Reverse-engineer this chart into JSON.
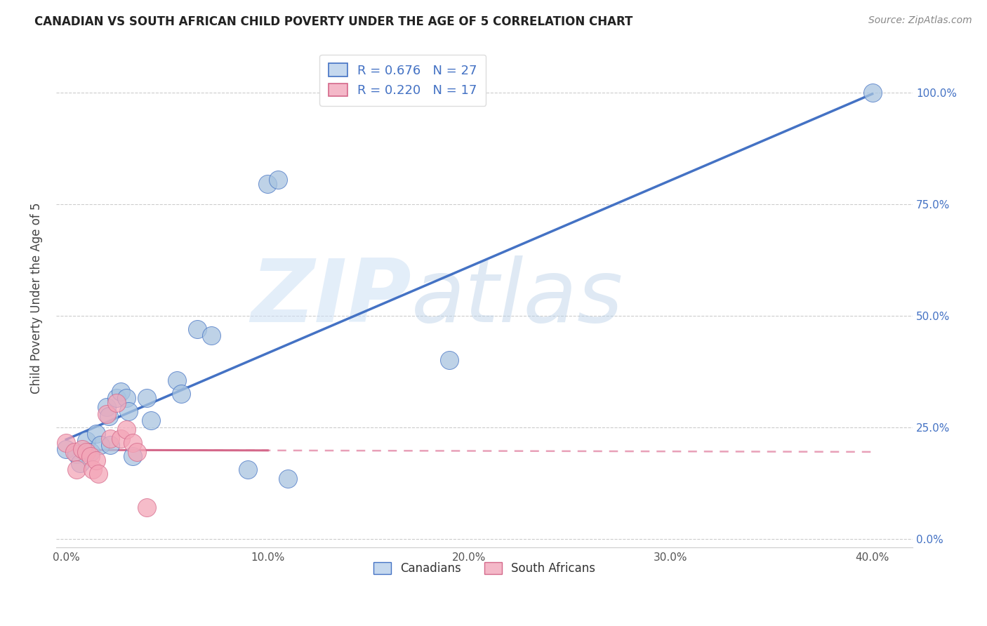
{
  "title": "CANADIAN VS SOUTH AFRICAN CHILD POVERTY UNDER THE AGE OF 5 CORRELATION CHART",
  "source": "Source: ZipAtlas.com",
  "ylabel": "Child Poverty Under the Age of 5",
  "xlabel_ticks": [
    "0.0%",
    "10.0%",
    "20.0%",
    "30.0%",
    "40.0%"
  ],
  "xlabel_vals": [
    0.0,
    0.1,
    0.2,
    0.3,
    0.4
  ],
  "ylabel_ticks": [
    "0.0%",
    "25.0%",
    "50.0%",
    "75.0%",
    "100.0%"
  ],
  "ylabel_vals": [
    0.0,
    0.25,
    0.5,
    0.75,
    1.0
  ],
  "xlim": [
    -0.005,
    0.42
  ],
  "ylim": [
    -0.02,
    1.1
  ],
  "canadian_r": 0.676,
  "canadian_n": 27,
  "sa_r": 0.22,
  "sa_n": 17,
  "canadian_color": "#a8c4e0",
  "canadian_line_color": "#4472c4",
  "sa_color": "#f4a6b8",
  "sa_line_color": "#d4688a",
  "watermark_zip": "ZIP",
  "watermark_atlas": "atlas",
  "canadian_points": [
    [
      0.0,
      0.2
    ],
    [
      0.005,
      0.19
    ],
    [
      0.007,
      0.17
    ],
    [
      0.01,
      0.22
    ],
    [
      0.012,
      0.195
    ],
    [
      0.015,
      0.235
    ],
    [
      0.017,
      0.21
    ],
    [
      0.02,
      0.295
    ],
    [
      0.021,
      0.275
    ],
    [
      0.022,
      0.21
    ],
    [
      0.025,
      0.315
    ],
    [
      0.027,
      0.33
    ],
    [
      0.03,
      0.315
    ],
    [
      0.031,
      0.285
    ],
    [
      0.033,
      0.185
    ],
    [
      0.04,
      0.315
    ],
    [
      0.042,
      0.265
    ],
    [
      0.055,
      0.355
    ],
    [
      0.057,
      0.325
    ],
    [
      0.065,
      0.47
    ],
    [
      0.072,
      0.455
    ],
    [
      0.09,
      0.155
    ],
    [
      0.1,
      0.795
    ],
    [
      0.105,
      0.805
    ],
    [
      0.11,
      0.135
    ],
    [
      0.19,
      0.4
    ],
    [
      0.4,
      1.0
    ]
  ],
  "sa_points": [
    [
      0.0,
      0.215
    ],
    [
      0.004,
      0.195
    ],
    [
      0.005,
      0.155
    ],
    [
      0.008,
      0.2
    ],
    [
      0.01,
      0.195
    ],
    [
      0.012,
      0.185
    ],
    [
      0.013,
      0.155
    ],
    [
      0.015,
      0.175
    ],
    [
      0.016,
      0.145
    ],
    [
      0.02,
      0.28
    ],
    [
      0.022,
      0.225
    ],
    [
      0.025,
      0.305
    ],
    [
      0.027,
      0.225
    ],
    [
      0.03,
      0.245
    ],
    [
      0.033,
      0.215
    ],
    [
      0.035,
      0.195
    ],
    [
      0.04,
      0.07
    ]
  ],
  "background_color": "#ffffff",
  "grid_color": "#cccccc",
  "title_color": "#222222",
  "legend_box_color_canadian": "#c5d8ee",
  "legend_box_color_sa": "#f4b8c8"
}
